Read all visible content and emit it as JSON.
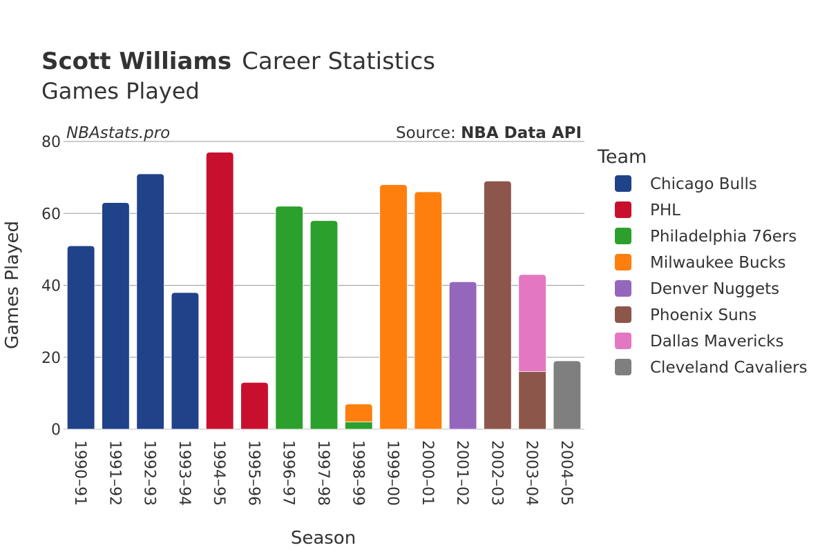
{
  "header": {
    "title_bold": "Scott Williams",
    "title_rest": "Career Statistics",
    "subtitle": "Games Played",
    "watermark": "NBAstats.pro",
    "source_prefix": "Source: ",
    "source_bold": "NBA Data API"
  },
  "chart_data": {
    "type": "bar",
    "stacked": true,
    "title": "Scott Williams Career Statistics",
    "subtitle": "Games Played",
    "xlabel": "Season",
    "ylabel": "Games Played",
    "ylim": [
      0,
      80
    ],
    "yticks": [
      0,
      20,
      40,
      60,
      80
    ],
    "grid": true,
    "legend_title": "Team",
    "legend_position": "right",
    "categories": [
      "1990–91",
      "1991–92",
      "1992–93",
      "1993–94",
      "1994–95",
      "1995–96",
      "1996–97",
      "1997–98",
      "1998–99",
      "1999–00",
      "2000–01",
      "2001–02",
      "2002–03",
      "2003–04",
      "2004–05"
    ],
    "series": [
      {
        "name": "Chicago Bulls",
        "color": "#1f4289",
        "values": [
          51,
          63,
          71,
          38,
          0,
          0,
          0,
          0,
          0,
          0,
          0,
          0,
          0,
          0,
          0
        ]
      },
      {
        "name": "PHL",
        "color": "#c8102e",
        "values": [
          0,
          0,
          0,
          0,
          77,
          13,
          0,
          0,
          0,
          0,
          0,
          0,
          0,
          0,
          0
        ]
      },
      {
        "name": "Philadelphia 76ers",
        "color": "#2ca02c",
        "values": [
          0,
          0,
          0,
          0,
          0,
          0,
          62,
          58,
          2,
          0,
          0,
          0,
          0,
          0,
          0
        ]
      },
      {
        "name": "Milwaukee Bucks",
        "color": "#ff7f0e",
        "values": [
          0,
          0,
          0,
          0,
          0,
          0,
          0,
          0,
          5,
          68,
          66,
          0,
          0,
          0,
          0
        ]
      },
      {
        "name": "Denver Nuggets",
        "color": "#9467bd",
        "values": [
          0,
          0,
          0,
          0,
          0,
          0,
          0,
          0,
          0,
          0,
          0,
          41,
          0,
          0,
          0
        ]
      },
      {
        "name": "Phoenix Suns",
        "color": "#8c564b",
        "values": [
          0,
          0,
          0,
          0,
          0,
          0,
          0,
          0,
          0,
          0,
          0,
          0,
          69,
          16,
          0
        ]
      },
      {
        "name": "Dallas Mavericks",
        "color": "#e377c2",
        "values": [
          0,
          0,
          0,
          0,
          0,
          0,
          0,
          0,
          0,
          0,
          0,
          0,
          0,
          27,
          0
        ]
      },
      {
        "name": "Cleveland Cavaliers",
        "color": "#7f7f7f",
        "values": [
          0,
          0,
          0,
          0,
          0,
          0,
          0,
          0,
          0,
          0,
          0,
          0,
          0,
          0,
          19
        ]
      }
    ]
  }
}
